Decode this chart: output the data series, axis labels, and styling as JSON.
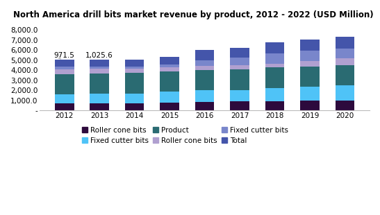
{
  "title": "North America drill bits market revenue by product, 2012 - 2022 (USD Million)",
  "years": [
    2012,
    2013,
    2014,
    2015,
    2016,
    2017,
    2018,
    2019,
    2020
  ],
  "seg1_roller_cone_product": [
    700,
    700,
    750,
    800,
    850,
    900,
    950,
    1000,
    1020
  ],
  "seg2_fixed_cutter_product": [
    900,
    1000,
    950,
    1100,
    1150,
    1150,
    1300,
    1400,
    1500
  ],
  "seg3_product_teal": [
    2050,
    2000,
    2050,
    2000,
    2000,
    2050,
    2050,
    2000,
    2000
  ],
  "seg4_roller_cone_total": [
    450,
    450,
    400,
    430,
    430,
    380,
    380,
    550,
    650
  ],
  "seg5_fixed_cutter_total": [
    250,
    250,
    250,
    250,
    570,
    770,
    1020,
    1000,
    1000
  ],
  "seg6_blue_top": [
    700,
    700,
    700,
    750,
    1000,
    1000,
    1100,
    1100,
    1200
  ],
  "annotations": [
    {
      "year_idx": 0,
      "text": "971.5"
    },
    {
      "year_idx": 1,
      "text": "1,025.6"
    }
  ],
  "colors": {
    "seg1": "#2d0a3d",
    "seg2": "#4fc3f7",
    "seg3": "#2a6b72",
    "seg4": "#b0a0d0",
    "seg5": "#7986cb",
    "seg6": "#4455aa"
  },
  "ylim": [
    0,
    8700
  ],
  "ytick_vals": [
    0,
    1000,
    2000,
    3000,
    4000,
    5000,
    6000,
    7000,
    8000
  ],
  "ytick_labels": [
    "-",
    "1,000.0",
    "2,000.0",
    "3,000.0",
    "4,000.0",
    "5,000.0",
    "6,000.0",
    "7,000.0",
    "8,000.0"
  ],
  "bar_width": 0.55,
  "title_fontsize": 8.5,
  "tick_fontsize": 7.5,
  "legend_fontsize": 7.5,
  "background_color": "#ffffff"
}
